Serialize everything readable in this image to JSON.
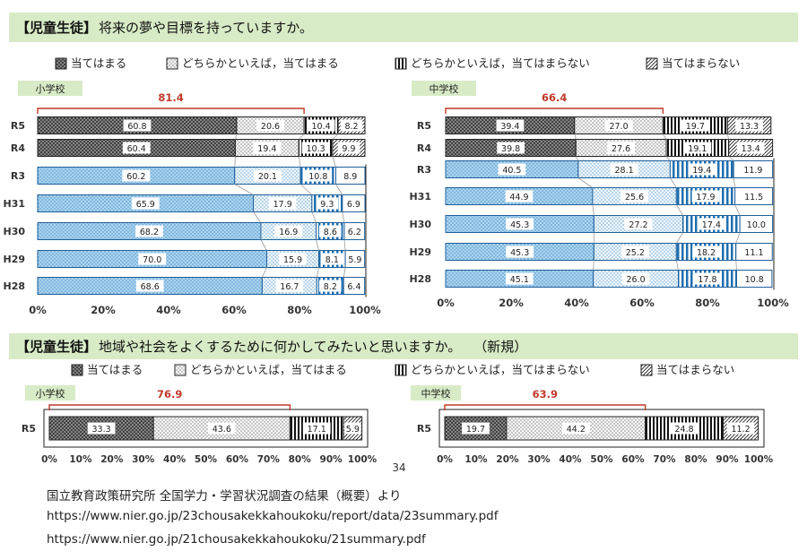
{
  "q1": {
    "title_bracket": "【児童生徒】",
    "title_text": "将来の夢や目標を持っていますか。"
  },
  "q2": {
    "title_bracket": "【児童生徒】",
    "title_text": "地域や社会をよくするために何かしてみたいと思いますか。",
    "title_note": "（新規）"
  },
  "legend": [
    {
      "label": "当てはまる",
      "pattern": "crosshatch"
    },
    {
      "label": "どちらかといえば，当てはまる",
      "pattern": "dots"
    },
    {
      "label": "どちらかといえば，当てはまらない",
      "pattern": "vstripes"
    },
    {
      "label": "当てはまらない",
      "pattern": "diag"
    }
  ],
  "page_number": "34",
  "footer": {
    "line1": "国立教育政策研究所 全国学力・学習状況調査の結果（概要）より",
    "line2": "https://www.nier.go.jp/23chousakekkahoukoku/report/data/23summary.pdf",
    "line3": "https://www.nier.go.jp/21chousakekkahoukoku/21summary.pdf"
  },
  "chart_data": [
    {
      "type": "bar",
      "orientation": "horizontal-stacked-100",
      "panel": "小学校",
      "question": "将来の夢や目標を持っていますか。",
      "categories": [
        "R5",
        "R4",
        "R3",
        "H31",
        "H30",
        "H29",
        "H28"
      ],
      "series": [
        {
          "name": "当てはまる",
          "values": [
            60.8,
            60.4,
            60.2,
            65.9,
            68.2,
            70.0,
            68.6
          ]
        },
        {
          "name": "どちらかといえば，当てはまる",
          "values": [
            20.6,
            19.4,
            20.1,
            17.9,
            16.9,
            15.9,
            16.7
          ]
        },
        {
          "name": "どちらかといえば，当てはまらない",
          "values": [
            10.4,
            10.3,
            10.8,
            9.3,
            8.6,
            8.1,
            8.2
          ]
        },
        {
          "name": "当てはまらない",
          "values": [
            8.2,
            9.9,
            8.9,
            6.9,
            6.2,
            5.9,
            6.4
          ]
        }
      ],
      "annotation": "81.4",
      "xlim": [
        0,
        100
      ],
      "xticks": [
        "0%",
        "20%",
        "40%",
        "60%",
        "80%",
        "100%"
      ]
    },
    {
      "type": "bar",
      "orientation": "horizontal-stacked-100",
      "panel": "中学校",
      "question": "将来の夢や目標を持っていますか。",
      "categories": [
        "R5",
        "R4",
        "R3",
        "H31",
        "H30",
        "H29",
        "H28"
      ],
      "series": [
        {
          "name": "当てはまる",
          "values": [
            39.4,
            39.8,
            40.5,
            44.9,
            45.3,
            45.3,
            45.1
          ]
        },
        {
          "name": "どちらかといえば，当てはまる",
          "values": [
            27.0,
            27.6,
            28.1,
            25.6,
            27.2,
            25.2,
            26.0
          ]
        },
        {
          "name": "どちらかといえば，当てはまらない",
          "values": [
            19.7,
            19.1,
            19.4,
            17.9,
            17.4,
            18.2,
            17.8
          ]
        },
        {
          "name": "当てはまらない",
          "values": [
            13.3,
            13.4,
            11.9,
            11.5,
            10.0,
            11.1,
            10.8
          ]
        }
      ],
      "annotation": "66.4",
      "xlim": [
        0,
        100
      ],
      "xticks": [
        "0%",
        "20%",
        "40%",
        "60%",
        "80%",
        "100%"
      ]
    },
    {
      "type": "bar",
      "orientation": "horizontal-stacked-100",
      "panel": "小学校",
      "question": "地域や社会をよくするために何かしてみたいと思いますか。",
      "categories": [
        "R5"
      ],
      "series": [
        {
          "name": "当てはまる",
          "values": [
            33.3
          ]
        },
        {
          "name": "どちらかといえば，当てはまる",
          "values": [
            43.6
          ]
        },
        {
          "name": "どちらかといえば，当てはまらない",
          "values": [
            17.1
          ]
        },
        {
          "name": "当てはまらない",
          "values": [
            5.9
          ]
        }
      ],
      "annotation": "76.9",
      "xlim": [
        0,
        100
      ],
      "xticks": [
        "0%",
        "10%",
        "20%",
        "30%",
        "40%",
        "50%",
        "60%",
        "70%",
        "80%",
        "90%",
        "100%"
      ]
    },
    {
      "type": "bar",
      "orientation": "horizontal-stacked-100",
      "panel": "中学校",
      "question": "地域や社会をよくするために何かしてみたいと思いますか。",
      "categories": [
        "R5"
      ],
      "series": [
        {
          "name": "当てはまる",
          "values": [
            19.7
          ]
        },
        {
          "name": "どちらかといえば，当てはまる",
          "values": [
            44.2
          ]
        },
        {
          "name": "どちらかといえば，当てはまらない",
          "values": [
            24.8
          ]
        },
        {
          "name": "当てはまらない",
          "values": [
            11.2
          ]
        }
      ],
      "annotation": "63.9",
      "xlim": [
        0,
        100
      ],
      "xticks": [
        "0%",
        "10%",
        "20%",
        "30%",
        "40%",
        "50%",
        "60%",
        "70%",
        "80%",
        "90%",
        "100%"
      ]
    }
  ]
}
